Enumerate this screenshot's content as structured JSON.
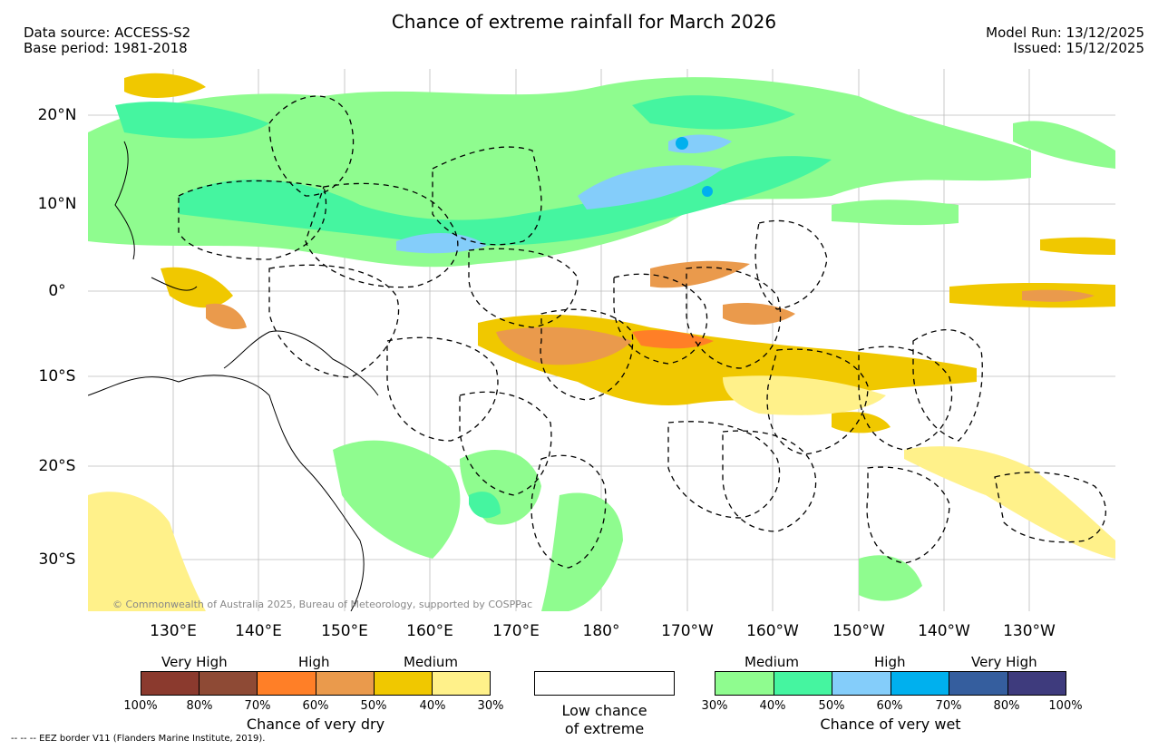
{
  "title": "Chance of extreme rainfall for March 2026",
  "data_source": "Data source: ACCESS-S2",
  "base_period": "Base period: 1981-2018",
  "model_run": "Model Run: 13/12/2025",
  "issued": "Issued: 15/12/2025",
  "copyright": "© Commonwealth of Australia 2025, Bureau of Meteorology, supported by COSPPac",
  "footer": "-- -- -- EEZ border V11 (Flanders Marine Institute, 2019).",
  "lat_labels": [
    "20°N",
    "10°N",
    "0°",
    "10°S",
    "20°S",
    "30°S"
  ],
  "lon_labels": [
    "130°E",
    "140°E",
    "150°E",
    "160°E",
    "170°E",
    "180°",
    "170°W",
    "160°W",
    "150°W",
    "140°W",
    "130°W"
  ],
  "legend": {
    "dry": {
      "headings": [
        "Very High",
        "High",
        "Medium"
      ],
      "colors": [
        "#8b3a2e",
        "#8e4a35",
        "#ff7f27",
        "#ea9a4c",
        "#f0c800",
        "#fff18a"
      ],
      "ticks": [
        "100%",
        "80%",
        "70%",
        "60%",
        "50%",
        "40%",
        "30%"
      ],
      "title": "Chance of very dry"
    },
    "low": {
      "line1": "Low chance",
      "line2": "of extreme"
    },
    "wet": {
      "headings": [
        "Medium",
        "High",
        "Very High"
      ],
      "colors": [
        "#8ffc8f",
        "#45f5a0",
        "#84cdfa",
        "#00b0ee",
        "#355e9e",
        "#3e3b7d"
      ],
      "ticks": [
        "30%",
        "40%",
        "50%",
        "60%",
        "70%",
        "80%",
        "100%"
      ],
      "title": "Chance of very wet"
    }
  }
}
